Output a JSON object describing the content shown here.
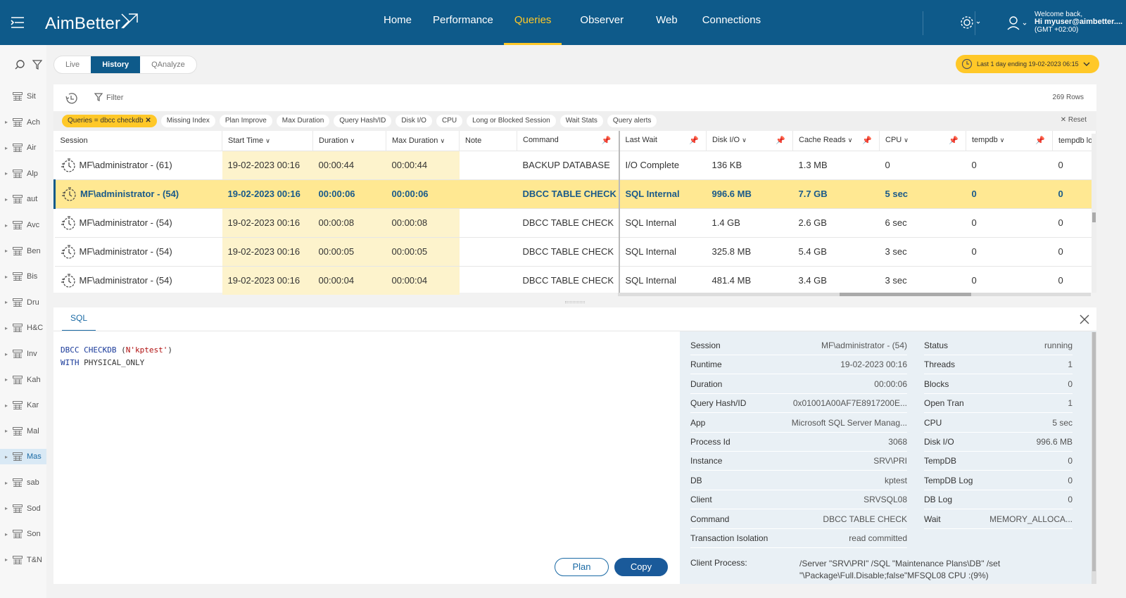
{
  "header": {
    "logo": "AimBetter",
    "nav": [
      "Home",
      "Performance",
      "Queries",
      "Observer",
      "Web",
      "Connections"
    ],
    "active_nav": "Queries",
    "welcome": "Welcome back,",
    "user": "Hi myuser@aimbetter....",
    "tz": "(GMT +02:00)"
  },
  "sidebar": {
    "items": [
      {
        "label": "Sit"
      },
      {
        "label": "Ach"
      },
      {
        "label": "Air"
      },
      {
        "label": "Alp"
      },
      {
        "label": "aut"
      },
      {
        "label": "Avc"
      },
      {
        "label": "Ben"
      },
      {
        "label": "Bis"
      },
      {
        "label": "Dru"
      },
      {
        "label": "H&C"
      },
      {
        "label": "Inv"
      },
      {
        "label": "Kah"
      },
      {
        "label": "Kar"
      },
      {
        "label": "Mal"
      },
      {
        "label": "Mas"
      },
      {
        "label": "sab"
      },
      {
        "label": "Sod"
      },
      {
        "label": "Son"
      },
      {
        "label": "T&N"
      }
    ]
  },
  "mode_tabs": [
    "Live",
    "History",
    "QAnalyze"
  ],
  "date_range": "Last 1 day ending  19-02-2023 06:15",
  "filter": {
    "label": "Filter",
    "rows": "269 Rows"
  },
  "chips": [
    "Queries = dbcc checkdb",
    "Missing Index",
    "Plan Improve",
    "Max Duration",
    "Query Hash/ID",
    "Disk I/O",
    "CPU",
    "Long or Blocked Session",
    "Wait Stats",
    "Query alerts"
  ],
  "reset": "Reset",
  "table": {
    "columns": [
      "Session",
      "Start Time",
      "Duration",
      "Max Duration",
      "Note",
      "Command",
      "Last Wait",
      "Disk I/O",
      "Cache Reads",
      "CPU",
      "tempdb",
      "tempdb log"
    ],
    "rows": [
      [
        "MF\\administrator - (61)",
        "19-02-2023 00:16",
        "00:00:44",
        "00:00:44",
        "",
        "BACKUP DATABASE",
        "I/O Complete",
        "136 KB",
        "1.3 MB",
        "0",
        "0",
        "0"
      ],
      [
        "MF\\administrator - (54)",
        "19-02-2023 00:16",
        "00:00:06",
        "00:00:06",
        "",
        "DBCC TABLE CHECK",
        "SQL Internal",
        "996.6 MB",
        "7.7 GB",
        "5 sec",
        "0",
        "0"
      ],
      [
        "MF\\administrator - (54)",
        "19-02-2023 00:16",
        "00:00:08",
        "00:00:08",
        "",
        "DBCC TABLE CHECK",
        "SQL Internal",
        "1.4 GB",
        "2.6 GB",
        "6 sec",
        "0",
        "0"
      ],
      [
        "MF\\administrator - (54)",
        "19-02-2023 00:16",
        "00:00:05",
        "00:00:05",
        "",
        "DBCC TABLE CHECK",
        "SQL Internal",
        "325.8 MB",
        "5.4 GB",
        "3 sec",
        "0",
        "0"
      ],
      [
        "MF\\administrator - (54)",
        "19-02-2023 00:16",
        "00:00:04",
        "00:00:04",
        "",
        "DBCC TABLE CHECK",
        "SQL Internal",
        "481.4 MB",
        "3.4 GB",
        "3 sec",
        "0",
        "0"
      ]
    ]
  },
  "detail": {
    "tab": "SQL",
    "code": {
      "l1_kw": "DBCC CHECKDB",
      "l1_p1": " (",
      "l1_str": "N'kptest'",
      "l1_p2": ")",
      "l2_kw": "WITH",
      "l2_rest": " PHYSICAL_ONLY"
    },
    "plan": "Plan",
    "copy": "Copy",
    "left": [
      {
        "k": "Session",
        "v": "MF\\administrator - (54)"
      },
      {
        "k": "Runtime",
        "v": "19-02-2023 00:16"
      },
      {
        "k": "Duration",
        "v": "00:00:06"
      },
      {
        "k": "Query Hash/ID",
        "v": "0x01001A00AF7E8917200E..."
      },
      {
        "k": "App",
        "v": "Microsoft SQL Server Manag..."
      },
      {
        "k": "Process Id",
        "v": "3068"
      },
      {
        "k": "Instance",
        "v": "SRV\\PRI"
      },
      {
        "k": "DB",
        "v": "kptest"
      },
      {
        "k": "Client",
        "v": "SRVSQL08"
      },
      {
        "k": "Command",
        "v": "DBCC TABLE CHECK"
      },
      {
        "k": "Transaction Isolation",
        "v": "read committed"
      }
    ],
    "right": [
      {
        "k": "Status",
        "v": "running"
      },
      {
        "k": "Threads",
        "v": "1"
      },
      {
        "k": "Blocks",
        "v": "0"
      },
      {
        "k": "Open Tran",
        "v": "1"
      },
      {
        "k": "CPU",
        "v": "5 sec"
      },
      {
        "k": "Disk I/O",
        "v": "996.6 MB"
      },
      {
        "k": "TempDB",
        "v": "0"
      },
      {
        "k": "TempDB Log",
        "v": "0"
      },
      {
        "k": "DB Log",
        "v": "0"
      },
      {
        "k": "Wait",
        "v": "MEMORY_ALLOCA..."
      }
    ],
    "client_process_label": "Client Process:",
    "client_process": "/Server \"SRV\\PRI\" /SQL \"Maintenance Plans\\DB\" /set \"\\Package\\Full.Disable;false\"MFSQL08 CPU :(9%)"
  }
}
